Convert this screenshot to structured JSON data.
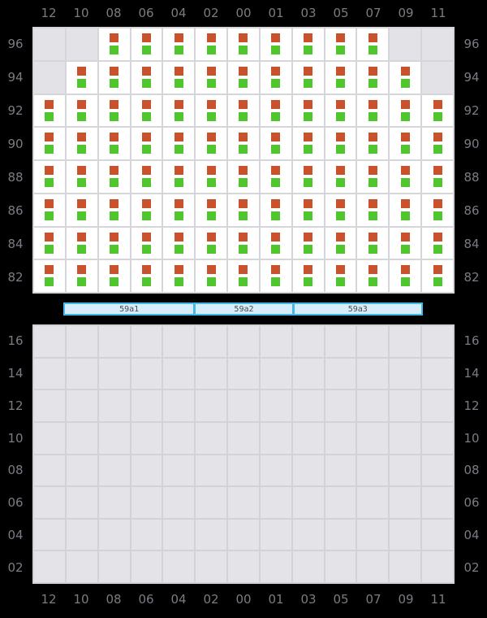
{
  "colors": {
    "background": "#000000",
    "label": "#7b7b84",
    "grid_line_top": "#d6d6da",
    "grid_line_bottom": "#d2d2d8",
    "occupied_cell": "#ffffff",
    "empty_cell": "#e3e3e7",
    "deck_cell": "#e4e4e8",
    "cargo_orange": "#c9512b",
    "cargo_green": "#4fc72c",
    "hatch_border": "#45b8e8",
    "hatch_fill": "#d6edfa",
    "hatch_text": "#4a4a4a"
  },
  "columns": [
    "12",
    "10",
    "08",
    "06",
    "04",
    "02",
    "00",
    "01",
    "03",
    "05",
    "07",
    "09",
    "11"
  ],
  "top_grid": {
    "row_labels": [
      "96",
      "94",
      "92",
      "90",
      "88",
      "86",
      "84",
      "82"
    ],
    "occupancy": [
      [
        0,
        0,
        1,
        1,
        1,
        1,
        1,
        1,
        1,
        1,
        1,
        0,
        0
      ],
      [
        0,
        1,
        1,
        1,
        1,
        1,
        1,
        1,
        1,
        1,
        1,
        1,
        0
      ],
      [
        1,
        1,
        1,
        1,
        1,
        1,
        1,
        1,
        1,
        1,
        1,
        1,
        1
      ],
      [
        1,
        1,
        1,
        1,
        1,
        1,
        1,
        1,
        1,
        1,
        1,
        1,
        1
      ],
      [
        1,
        1,
        1,
        1,
        1,
        1,
        1,
        1,
        1,
        1,
        1,
        1,
        1
      ],
      [
        1,
        1,
        1,
        1,
        1,
        1,
        1,
        1,
        1,
        1,
        1,
        1,
        1
      ],
      [
        1,
        1,
        1,
        1,
        1,
        1,
        1,
        1,
        1,
        1,
        1,
        1,
        1
      ],
      [
        1,
        1,
        1,
        1,
        1,
        1,
        1,
        1,
        1,
        1,
        1,
        1,
        1
      ]
    ]
  },
  "hatch_covers": [
    {
      "label": "59a1"
    },
    {
      "label": "59a2"
    },
    {
      "label": "59a3"
    }
  ],
  "bottom_grid": {
    "row_labels": [
      "16",
      "14",
      "12",
      "10",
      "08",
      "06",
      "04",
      "02"
    ],
    "rows": 8,
    "cols": 13
  }
}
